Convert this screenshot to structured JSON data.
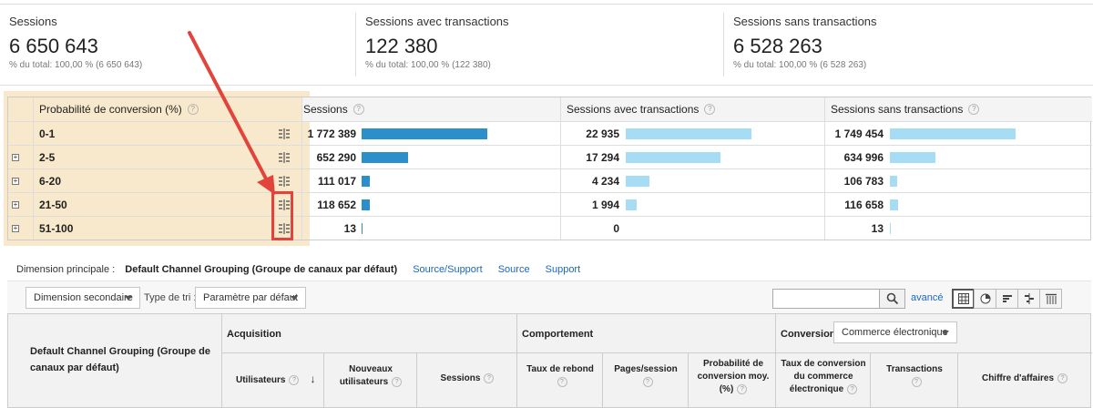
{
  "scorecards": [
    {
      "label": "Sessions",
      "value": "6 650 643",
      "sub": "% du total: 100,00 % (6 650 643)"
    },
    {
      "label": "Sessions avec transactions",
      "value": "122 380",
      "sub": "% du total: 100,00 % (122 380)"
    },
    {
      "label": "Sessions sans transactions",
      "value": "6 528 263",
      "sub": "% du total: 100,00 % (6 528 263)"
    }
  ],
  "table1": {
    "headers": [
      "Probabilité de conversion (%)",
      "Sessions",
      "Sessions avec transactions",
      "Sessions sans transactions"
    ],
    "help": "?",
    "expand": "+",
    "rows": [
      {
        "dim": "0-1",
        "sessions": "1 772 389",
        "with": "22 935",
        "without": "1 749 454",
        "sessions_share": 1.0,
        "with_share": 1.0,
        "without_share": 1.0
      },
      {
        "dim": "2-5",
        "sessions": "652 290",
        "with": "17 294",
        "without": "634 996",
        "sessions_share": 0.368,
        "with_share": 0.754,
        "without_share": 0.363
      },
      {
        "dim": "6-20",
        "sessions": "111 017",
        "with": "4 234",
        "without": "106 783",
        "sessions_share": 0.063,
        "with_share": 0.185,
        "without_share": 0.061
      },
      {
        "dim": "21-50",
        "sessions": "118 652",
        "with": "1 994",
        "without": "116 658",
        "sessions_share": 0.067,
        "with_share": 0.087,
        "without_share": 0.067
      },
      {
        "dim": "51-100",
        "sessions": "13",
        "with": "0",
        "without": "13",
        "sessions_share": 1e-05,
        "with_share": 0.0,
        "without_share": 1e-05
      }
    ]
  },
  "dimension_bar": {
    "label": "Dimension principale :",
    "current": "Default Channel Grouping (Groupe de canaux par défaut)",
    "links": [
      "Source/Support",
      "Source",
      "Support"
    ]
  },
  "toolbar": {
    "secondary_dimension": "Dimension secondaire",
    "sort_label": "Type de tri :",
    "sort_value": "Paramètre par défaut",
    "search_value": "",
    "advanced": "avancé"
  },
  "table2": {
    "dim_header": "Default Channel Grouping (Groupe de canaux par défaut)",
    "groups": {
      "acquisition": "Acquisition",
      "behavior": "Comportement",
      "conversions": "Conversions"
    },
    "conversions_select": "Commerce électronique",
    "columns": {
      "users": "Utilisateurs",
      "new_users": "Nouveaux utilisateurs",
      "sessions": "Sessions",
      "bounce": "Taux de rebond",
      "pages": "Pages/session",
      "prob": "Probabilité de conversion moy. (%)",
      "ecom_rate": "Taux de conversion du commerce électronique",
      "transactions": "Transactions",
      "revenue": "Chiffre d'affaires"
    },
    "help": "?",
    "sort_arrow": "↓"
  },
  "colors": {
    "highlight": "#f8e9cc",
    "bar_dark": "#2c8fcb",
    "bar_light": "#a6dcf4",
    "annotation": "#e2433b",
    "link": "#1a66c7"
  }
}
